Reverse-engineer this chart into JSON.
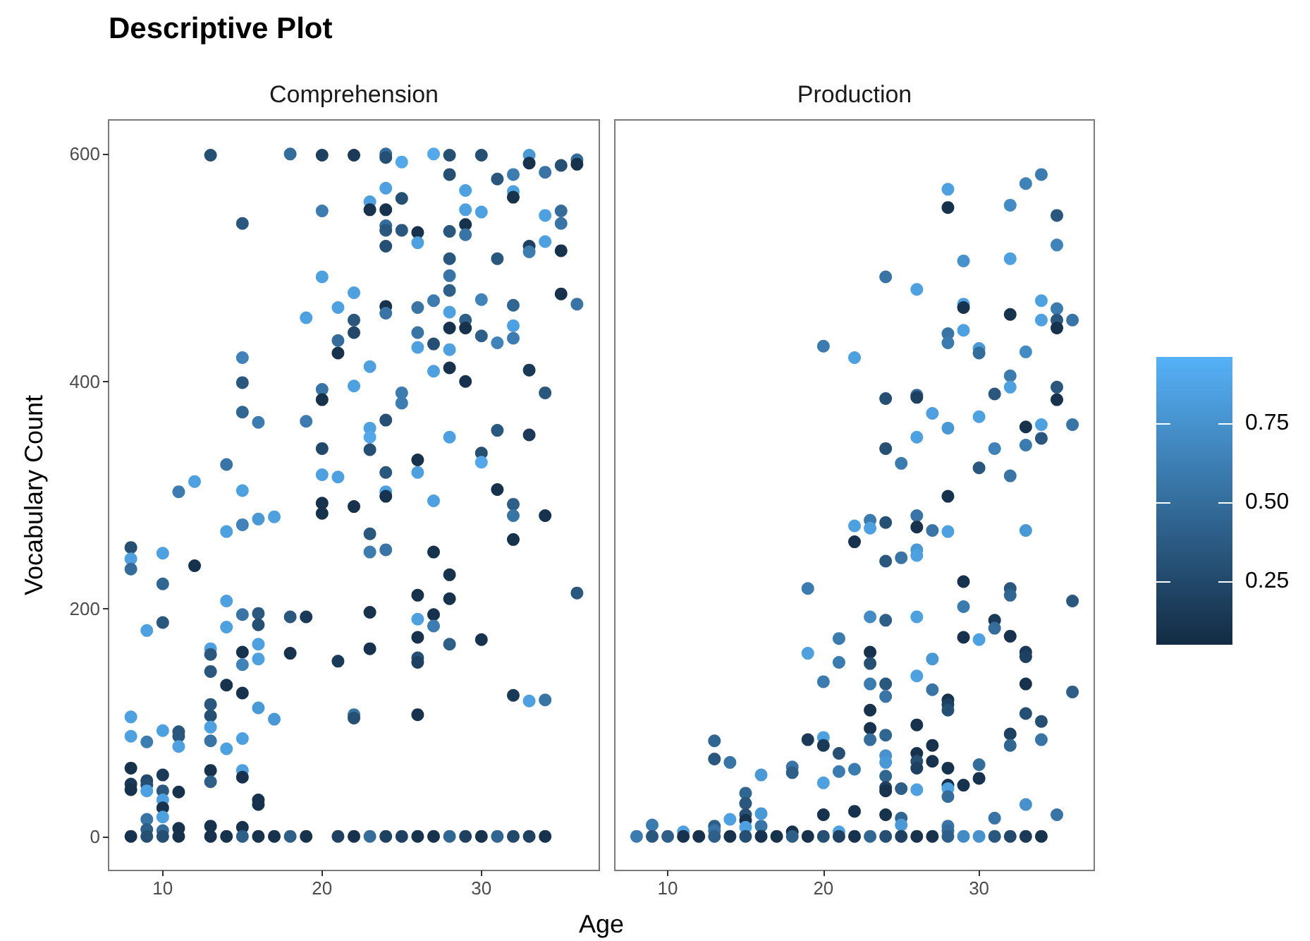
{
  "chart_data": [
    {
      "type": "scatter",
      "title": "Descriptive Plot",
      "subtitle": "Comprehension",
      "xlabel": "Age",
      "ylabel": "Vocabulary Count",
      "marker": "circle",
      "x": [
        13,
        18,
        20,
        22,
        24,
        24,
        25,
        27,
        28,
        30,
        33,
        33,
        35,
        36,
        36,
        34,
        28,
        31,
        32,
        24,
        29,
        25,
        32,
        32,
        23,
        23,
        24,
        20,
        29,
        30,
        34,
        35,
        35,
        15,
        24,
        24,
        25,
        26,
        26,
        28,
        29,
        29,
        24,
        33,
        33,
        34,
        35,
        28,
        31,
        20,
        28,
        22,
        28,
        35,
        36,
        21,
        24,
        24,
        26,
        27,
        30,
        32,
        19,
        22,
        28,
        28,
        29,
        29,
        22,
        26,
        30,
        32,
        32,
        31,
        21,
        21,
        27,
        26,
        28,
        15,
        23,
        27,
        28,
        33,
        15,
        22,
        20,
        20,
        29,
        34,
        25,
        25,
        15,
        16,
        19,
        24,
        23,
        23,
        31,
        33,
        28,
        20,
        23,
        30,
        30,
        26,
        14,
        12,
        11,
        15,
        20,
        21,
        24,
        26,
        31,
        24,
        24,
        27,
        32,
        32,
        34,
        20,
        20,
        22,
        14,
        15,
        16,
        17,
        23,
        23,
        24,
        27,
        32,
        8,
        8,
        8,
        10,
        12,
        10,
        28,
        26,
        28,
        36,
        14,
        15,
        16,
        16,
        18,
        19,
        23,
        26,
        27,
        27,
        9,
        10,
        14,
        16,
        16,
        13,
        13,
        15,
        15,
        18,
        23,
        26,
        26,
        26,
        28,
        30,
        21,
        13,
        14,
        15,
        16,
        17,
        32,
        33,
        34,
        22,
        22,
        26,
        13,
        13,
        13,
        13,
        8,
        8,
        9,
        10,
        11,
        11,
        11,
        14,
        15,
        15,
        15,
        8,
        8,
        8,
        9,
        9,
        9,
        10,
        10,
        10,
        10,
        10,
        11,
        13,
        13,
        16,
        16,
        9,
        9,
        10,
        11,
        13,
        15,
        8,
        9,
        10,
        11,
        13,
        14,
        15,
        16,
        17,
        18,
        19,
        21,
        22,
        23,
        24,
        25,
        26,
        27,
        28,
        29,
        30,
        31,
        32,
        33,
        34
      ],
      "values": [
        599,
        600,
        599,
        599,
        600,
        597,
        593,
        600,
        599,
        599,
        599,
        592,
        590,
        595,
        591,
        584,
        582,
        578,
        582,
        570,
        568,
        561,
        567,
        562,
        558,
        551,
        551,
        550,
        551,
        549,
        546,
        550,
        539,
        539,
        537,
        533,
        533,
        531,
        522,
        532,
        538,
        529,
        519,
        519,
        514,
        523,
        515,
        508,
        508,
        492,
        493,
        478,
        480,
        477,
        468,
        465,
        466,
        460,
        465,
        471,
        472,
        467,
        456,
        454,
        461,
        447,
        454,
        447,
        443,
        443,
        440,
        449,
        438,
        434,
        436,
        425,
        433,
        430,
        428,
        421,
        413,
        409,
        412,
        410,
        399,
        396,
        393,
        384,
        400,
        390,
        390,
        381,
        373,
        364,
        365,
        366,
        359,
        351,
        357,
        353,
        351,
        341,
        340,
        337,
        329,
        331,
        327,
        312,
        303,
        304,
        318,
        316,
        320,
        320,
        305,
        303,
        299,
        295,
        292,
        282,
        282,
        293,
        284,
        290,
        268,
        274,
        279,
        281,
        266,
        250,
        252,
        250,
        261,
        254,
        244,
        235,
        249,
        238,
        222,
        230,
        212,
        209,
        214,
        207,
        195,
        196,
        186,
        193,
        193,
        197,
        191,
        195,
        185,
        181,
        188,
        184,
        169,
        156,
        165,
        160,
        162,
        151,
        161,
        165,
        175,
        157,
        153,
        169,
        173,
        154,
        145,
        133,
        126,
        113,
        103,
        124,
        119,
        120,
        107,
        104,
        107,
        116,
        106,
        96,
        84,
        105,
        88,
        83,
        93,
        92,
        88,
        79,
        77,
        86,
        58,
        52,
        60,
        46,
        41,
        49,
        45,
        40,
        54,
        40,
        32,
        25,
        17,
        39,
        58,
        48,
        32,
        28,
        15,
        6,
        5,
        7,
        9,
        8,
        0,
        0,
        0,
        0,
        0,
        0,
        0,
        0,
        0,
        0,
        0,
        0,
        0,
        0,
        0,
        0,
        0,
        0,
        0,
        0,
        0,
        0,
        0,
        0,
        0
      ],
      "colors": [
        "#255074",
        "#346d9c",
        "#1e4161",
        "#1a3a57",
        "#346d9c",
        "#255074",
        "#52a8eb",
        "#52a8eb",
        "#255074",
        "#255074",
        "#4a99d7",
        "#17324d",
        "#255074",
        "#346d9c",
        "#17324d",
        "#3875a6",
        "#255074",
        "#29577e",
        "#3c7cb0",
        "#4ea1e1",
        "#4ea1e1",
        "#255074",
        "#4ea1e1",
        "#17324d",
        "#4ea1e1",
        "#17324d",
        "#17324d",
        "#3c7cb0",
        "#4ea1e1",
        "#4ea1e1",
        "#4ea1e1",
        "#346d9c",
        "#3875a6",
        "#29577e",
        "#346d9c",
        "#29577e",
        "#29577e",
        "#17324d",
        "#4ea1e1",
        "#29577e",
        "#17324d",
        "#3875a6",
        "#255074",
        "#1e4161",
        "#3c7cb0",
        "#4ea1e1",
        "#17324d",
        "#29577e",
        "#29577e",
        "#4ea1e1",
        "#3875a6",
        "#4ea1e1",
        "#2d5f88",
        "#17324d",
        "#3875a6",
        "#4ea1e1",
        "#17324d",
        "#3875a6",
        "#3875a6",
        "#3c7cb0",
        "#3f83ba",
        "#306692",
        "#4ea1e1",
        "#29577e",
        "#4ea1e1",
        "#17324d",
        "#2d5f88",
        "#17324d",
        "#22486b",
        "#3875a6",
        "#2d5f88",
        "#4ea1e1",
        "#3c7cb0",
        "#3f83ba",
        "#346d9c",
        "#17324d",
        "#255074",
        "#4ea1e1",
        "#4ea1e1",
        "#3f83ba",
        "#4ea1e1",
        "#4ea1e1",
        "#17324d",
        "#1a3a57",
        "#29577e",
        "#4ea1e1",
        "#3875a6",
        "#17324d",
        "#17324d",
        "#29577e",
        "#3c7cb0",
        "#3c7cb0",
        "#306692",
        "#3c7cb0",
        "#3c7cb0",
        "#255074",
        "#4ea1e1",
        "#52a8eb",
        "#29577e",
        "#1a3a57",
        "#4ea1e1",
        "#22486b",
        "#255074",
        "#255074",
        "#52a8eb",
        "#17324d",
        "#3875a6",
        "#4ea1e1",
        "#3c7cb0",
        "#4ea1e1",
        "#4ea1e1",
        "#4ea1e1",
        "#29577e",
        "#4ea1e1",
        "#17324d",
        "#4ea1e1",
        "#17324d",
        "#4ea1e1",
        "#2d5f88",
        "#3875a6",
        "#17324d",
        "#17324d",
        "#17324d",
        "#17324d",
        "#4ea1e1",
        "#3f83ba",
        "#4a99d7",
        "#4ea1e1",
        "#29577e",
        "#3c7cb0",
        "#3875a6",
        "#17324d",
        "#17324d",
        "#255074",
        "#4ea1e1",
        "#346d9c",
        "#4ea1e1",
        "#17324d",
        "#306692",
        "#17324d",
        "#17324d",
        "#17324d",
        "#29577e",
        "#4ea1e1",
        "#3875a6",
        "#29577e",
        "#255074",
        "#29577e",
        "#1a3a57",
        "#17324d",
        "#4ea1e1",
        "#17324d",
        "#3c7cb0",
        "#4ea1e1",
        "#29577e",
        "#4ea1e1",
        "#4ea1e1",
        "#4ea1e1",
        "#4ea1e1",
        "#29577e",
        "#17324d",
        "#3f83ba",
        "#17324d",
        "#17324d",
        "#17324d",
        "#255074",
        "#1e4161",
        "#2d5f88",
        "#17324d",
        "#1a3a57",
        "#29577e",
        "#17324d",
        "#17324d",
        "#4a99d7",
        "#4a99d7",
        "#1a3a57",
        "#4ea1e1",
        "#3875a6",
        "#3875a6",
        "#255074",
        "#17324d",
        "#29577e",
        "#255074",
        "#4ea1e1",
        "#3875a6",
        "#4ea1e1",
        "#4ea1e1",
        "#3c7cb0",
        "#4ea1e1",
        "#29577e",
        "#29577e",
        "#4ea1e1",
        "#4ea1e1",
        "#4ea1e1",
        "#4ea1e1",
        "#17324d",
        "#17324d",
        "#1a3a57",
        "#17324d",
        "#22486b",
        "#255074",
        "#4ea1e1",
        "#1a3a57",
        "#29577e",
        "#4ea1e1",
        "#17324d",
        "#4ea1e1",
        "#17324d",
        "#17324d",
        "#2d5f88",
        "#17324d",
        "#17324d",
        "#3875a6",
        "#2d5f88",
        "#346d9c",
        "#17324d",
        "#17324d",
        "#17324d",
        "#17324d",
        "#255074",
        "#255074",
        "#17324d",
        "#17324d",
        "#17324d",
        "#2d5f88",
        "#17324d",
        "#17324d",
        "#2d5f88",
        "#17324d",
        "#1e4161",
        "#17324d",
        "#346d9c",
        "#1e4161",
        "#1e4161",
        "#17324d",
        "#17324d",
        "#306692",
        "#1e4161",
        "#17324d",
        "#306692",
        "#22486b",
        "#1e4161",
        "#17324d"
      ],
      "xlim": [
        6.6,
        37.4
      ],
      "xticks": [
        10,
        20,
        30
      ],
      "ylim": [
        -30,
        630
      ],
      "yticks": [
        0,
        200,
        400,
        600
      ]
    },
    {
      "type": "scatter",
      "subtitle": "Production",
      "marker": "circle",
      "tick_labels": "x",
      "x": [
        34,
        33,
        28,
        28,
        32,
        35,
        35,
        29,
        32,
        24,
        26,
        34,
        35,
        35,
        35,
        36,
        34,
        29,
        29,
        32,
        28,
        28,
        29,
        30,
        30,
        33,
        20,
        22,
        32,
        32,
        35,
        35,
        24,
        26,
        26,
        31,
        27,
        30,
        33,
        34,
        34,
        36,
        28,
        26,
        24,
        31,
        33,
        25,
        30,
        32,
        28,
        22,
        23,
        23,
        24,
        26,
        26,
        27,
        28,
        33,
        22,
        24,
        25,
        26,
        26,
        29,
        32,
        32,
        36,
        19,
        29,
        23,
        24,
        26,
        31,
        31,
        29,
        30,
        32,
        33,
        33,
        21,
        19,
        21,
        23,
        23,
        27,
        20,
        23,
        24,
        24,
        26,
        27,
        28,
        28,
        28,
        33,
        36,
        23,
        33,
        34,
        23,
        23,
        24,
        26,
        32,
        32,
        34,
        19,
        20,
        20,
        21,
        13,
        13,
        14,
        16,
        18,
        18,
        20,
        21,
        22,
        24,
        24,
        24,
        24,
        24,
        25,
        26,
        26,
        26,
        26,
        27,
        27,
        28,
        28,
        28,
        28,
        29,
        30,
        30,
        33,
        35,
        31,
        20,
        22,
        24,
        25,
        25,
        15,
        15,
        15,
        15,
        15,
        16,
        16,
        14,
        13,
        13,
        9,
        11,
        21,
        28,
        28,
        18,
        8,
        9,
        10,
        11,
        12,
        13,
        14,
        15,
        16,
        17,
        18,
        19,
        20,
        21,
        22,
        23,
        24,
        25,
        26,
        27,
        28,
        29,
        30,
        31,
        32,
        33,
        34
      ],
      "values": [
        582,
        574,
        569,
        553,
        555,
        546,
        520,
        506,
        508,
        492,
        481,
        471,
        464,
        454,
        447,
        454,
        454,
        468,
        465,
        459,
        442,
        434,
        445,
        429,
        425,
        426,
        431,
        421,
        405,
        395,
        395,
        384,
        385,
        388,
        386,
        389,
        372,
        369,
        360,
        362,
        350,
        362,
        359,
        351,
        341,
        341,
        344,
        328,
        324,
        317,
        299,
        273,
        278,
        271,
        276,
        282,
        272,
        269,
        268,
        269,
        259,
        242,
        245,
        252,
        247,
        224,
        218,
        212,
        207,
        218,
        202,
        193,
        190,
        193,
        190,
        183,
        175,
        173,
        176,
        162,
        158,
        174,
        161,
        153,
        162,
        152,
        156,
        136,
        134,
        134,
        123,
        141,
        129,
        120,
        116,
        111,
        134,
        127,
        111,
        108,
        101,
        95,
        85,
        89,
        98,
        90,
        80,
        85,
        85,
        87,
        80,
        73,
        84,
        68,
        65,
        54,
        61,
        56,
        47,
        57,
        59,
        71,
        65,
        53,
        43,
        40,
        42,
        73,
        66,
        60,
        41,
        80,
        66,
        60,
        45,
        42,
        35,
        45,
        63,
        51,
        28,
        19,
        16,
        19,
        22,
        19,
        16,
        10,
        38,
        29,
        19,
        14,
        8,
        20,
        9,
        15,
        9,
        5,
        10,
        4,
        4,
        9,
        5,
        4,
        0,
        0,
        0,
        0,
        0,
        0,
        0,
        0,
        0,
        0,
        0,
        0,
        0,
        0,
        0,
        0,
        0,
        0,
        0,
        0,
        0,
        0,
        0,
        0,
        0,
        0,
        0
      ],
      "cvalues": [
        0.6,
        0.65,
        0.85,
        0.1,
        0.7,
        0.35,
        0.65,
        0.75,
        0.85,
        0.55,
        0.85,
        0.85,
        0.6,
        0.35,
        0.1,
        0.55,
        0.85,
        0.85,
        0.1,
        0.1,
        0.55,
        0.6,
        0.85,
        0.8,
        0.5,
        0.7,
        0.6,
        0.85,
        0.6,
        0.85,
        0.35,
        0.1,
        0.3,
        0.5,
        0.2,
        0.35,
        0.85,
        0.85,
        0.1,
        0.85,
        0.35,
        0.55,
        0.8,
        0.85,
        0.3,
        0.65,
        0.6,
        0.6,
        0.35,
        0.55,
        0.1,
        0.85,
        0.6,
        0.85,
        0.3,
        0.55,
        0.1,
        0.55,
        0.85,
        0.8,
        0.1,
        0.35,
        0.55,
        0.8,
        0.85,
        0.1,
        0.35,
        0.45,
        0.35,
        0.6,
        0.6,
        0.7,
        0.4,
        0.85,
        0.15,
        0.5,
        0.1,
        0.85,
        0.1,
        0.15,
        0.2,
        0.6,
        0.85,
        0.6,
        0.1,
        0.3,
        0.8,
        0.6,
        0.6,
        0.35,
        0.55,
        0.85,
        0.55,
        0.1,
        0.2,
        0.3,
        0.1,
        0.4,
        0.1,
        0.3,
        0.3,
        0.1,
        0.5,
        0.45,
        0.1,
        0.2,
        0.45,
        0.55,
        0.15,
        0.85,
        0.15,
        0.3,
        0.45,
        0.35,
        0.55,
        0.8,
        0.55,
        0.4,
        0.85,
        0.6,
        0.6,
        0.75,
        0.8,
        0.45,
        0.2,
        0.1,
        0.4,
        0.1,
        0.3,
        0.2,
        0.85,
        0.1,
        0.1,
        0.1,
        0.1,
        0.85,
        0.5,
        0.1,
        0.5,
        0.1,
        0.75,
        0.55,
        0.55,
        0.1,
        0.1,
        0.1,
        0.45,
        0.8,
        0.45,
        0.35,
        0.3,
        0.1,
        0.85,
        0.8,
        0.55,
        0.85,
        0.4,
        0.55,
        0.6,
        0.85,
        0.85,
        0.55,
        0.5,
        0.1,
        0.6,
        0.35,
        0.4,
        0.1,
        0.1,
        0.4,
        0.1,
        0.3,
        0.1,
        0.1,
        0.4,
        0.1,
        0.3,
        0.2,
        0.1,
        0.45,
        0.3,
        0.2,
        0.1,
        0.1,
        0.4,
        0.7,
        0.75,
        0.35,
        0.25,
        0.15,
        0.1
      ],
      "xlim": [
        6.6,
        37.4
      ],
      "xticks": [
        10,
        20,
        30
      ],
      "ylim": [
        -30,
        630
      ],
      "yticks": [
        0,
        200,
        400,
        600
      ],
      "clim": [
        0.05,
        0.96
      ],
      "cticks": [
        0.25,
        {
          "value": 0.5,
          "label": "0.50"
        },
        0.75
      ]
    }
  ]
}
